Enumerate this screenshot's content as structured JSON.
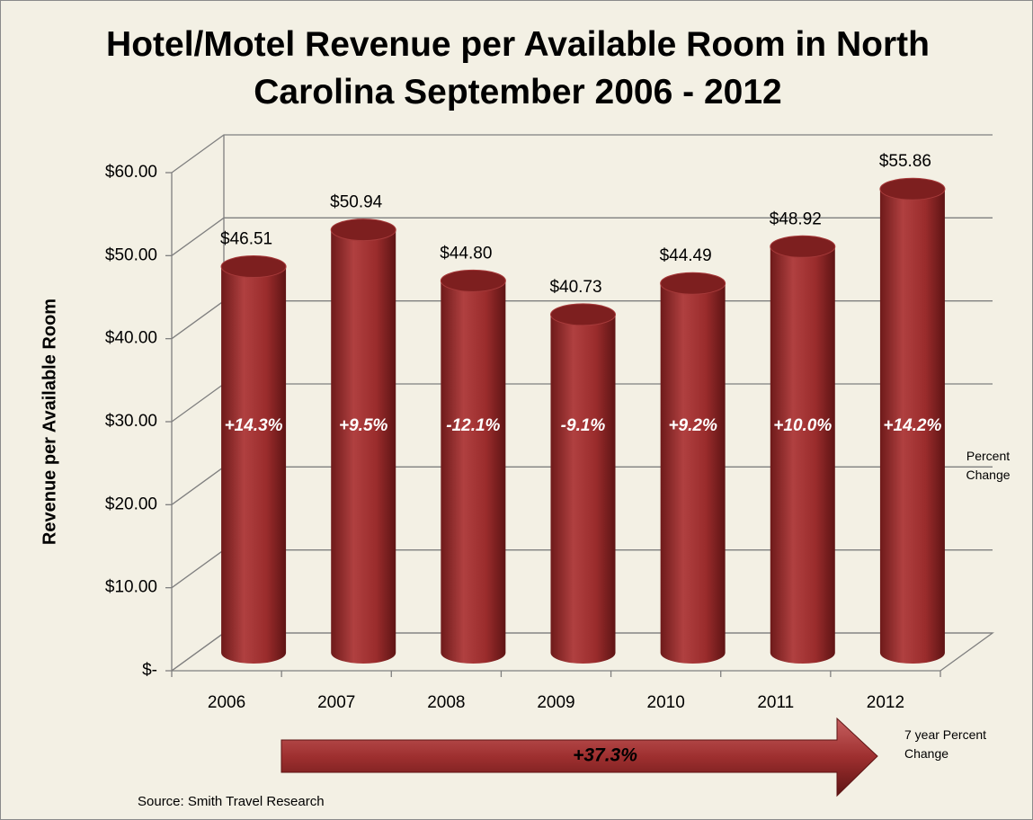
{
  "chart_data": {
    "type": "bar",
    "title": "Hotel/Motel Revenue per Available Room in North Carolina September 2006 - 2012",
    "y_label": "Revenue per Available Room",
    "categories": [
      "2006",
      "2007",
      "2008",
      "2009",
      "2010",
      "2011",
      "2012"
    ],
    "values": [
      46.51,
      50.94,
      44.8,
      40.73,
      44.49,
      48.92,
      55.86
    ],
    "value_labels": [
      "$46.51",
      "$50.94",
      "$44.80",
      "$40.73",
      "$44.49",
      "$48.92",
      "$55.86"
    ],
    "percent_changes": [
      "+14.3%",
      "+9.5%",
      "-12.1%",
      "-9.1%",
      "+9.2%",
      "+10.0%",
      "+14.2%"
    ],
    "percent_change_label": "Percent Change",
    "total_change": "+37.3%",
    "total_change_label": "7 year Percent Change",
    "source": "Source: Smith Travel Research",
    "color": "#9e2f2f",
    "ylim": [
      0,
      60
    ],
    "yticks": [
      {
        "value": 0,
        "label": "$-"
      },
      {
        "value": 10,
        "label": "$10.00"
      },
      {
        "value": 20,
        "label": "$20.00"
      },
      {
        "value": 30,
        "label": "$30.00"
      },
      {
        "value": 40,
        "label": "$40.00"
      },
      {
        "value": 50,
        "label": "$50.00"
      },
      {
        "value": 60,
        "label": "$60.00"
      }
    ],
    "grid": true
  }
}
